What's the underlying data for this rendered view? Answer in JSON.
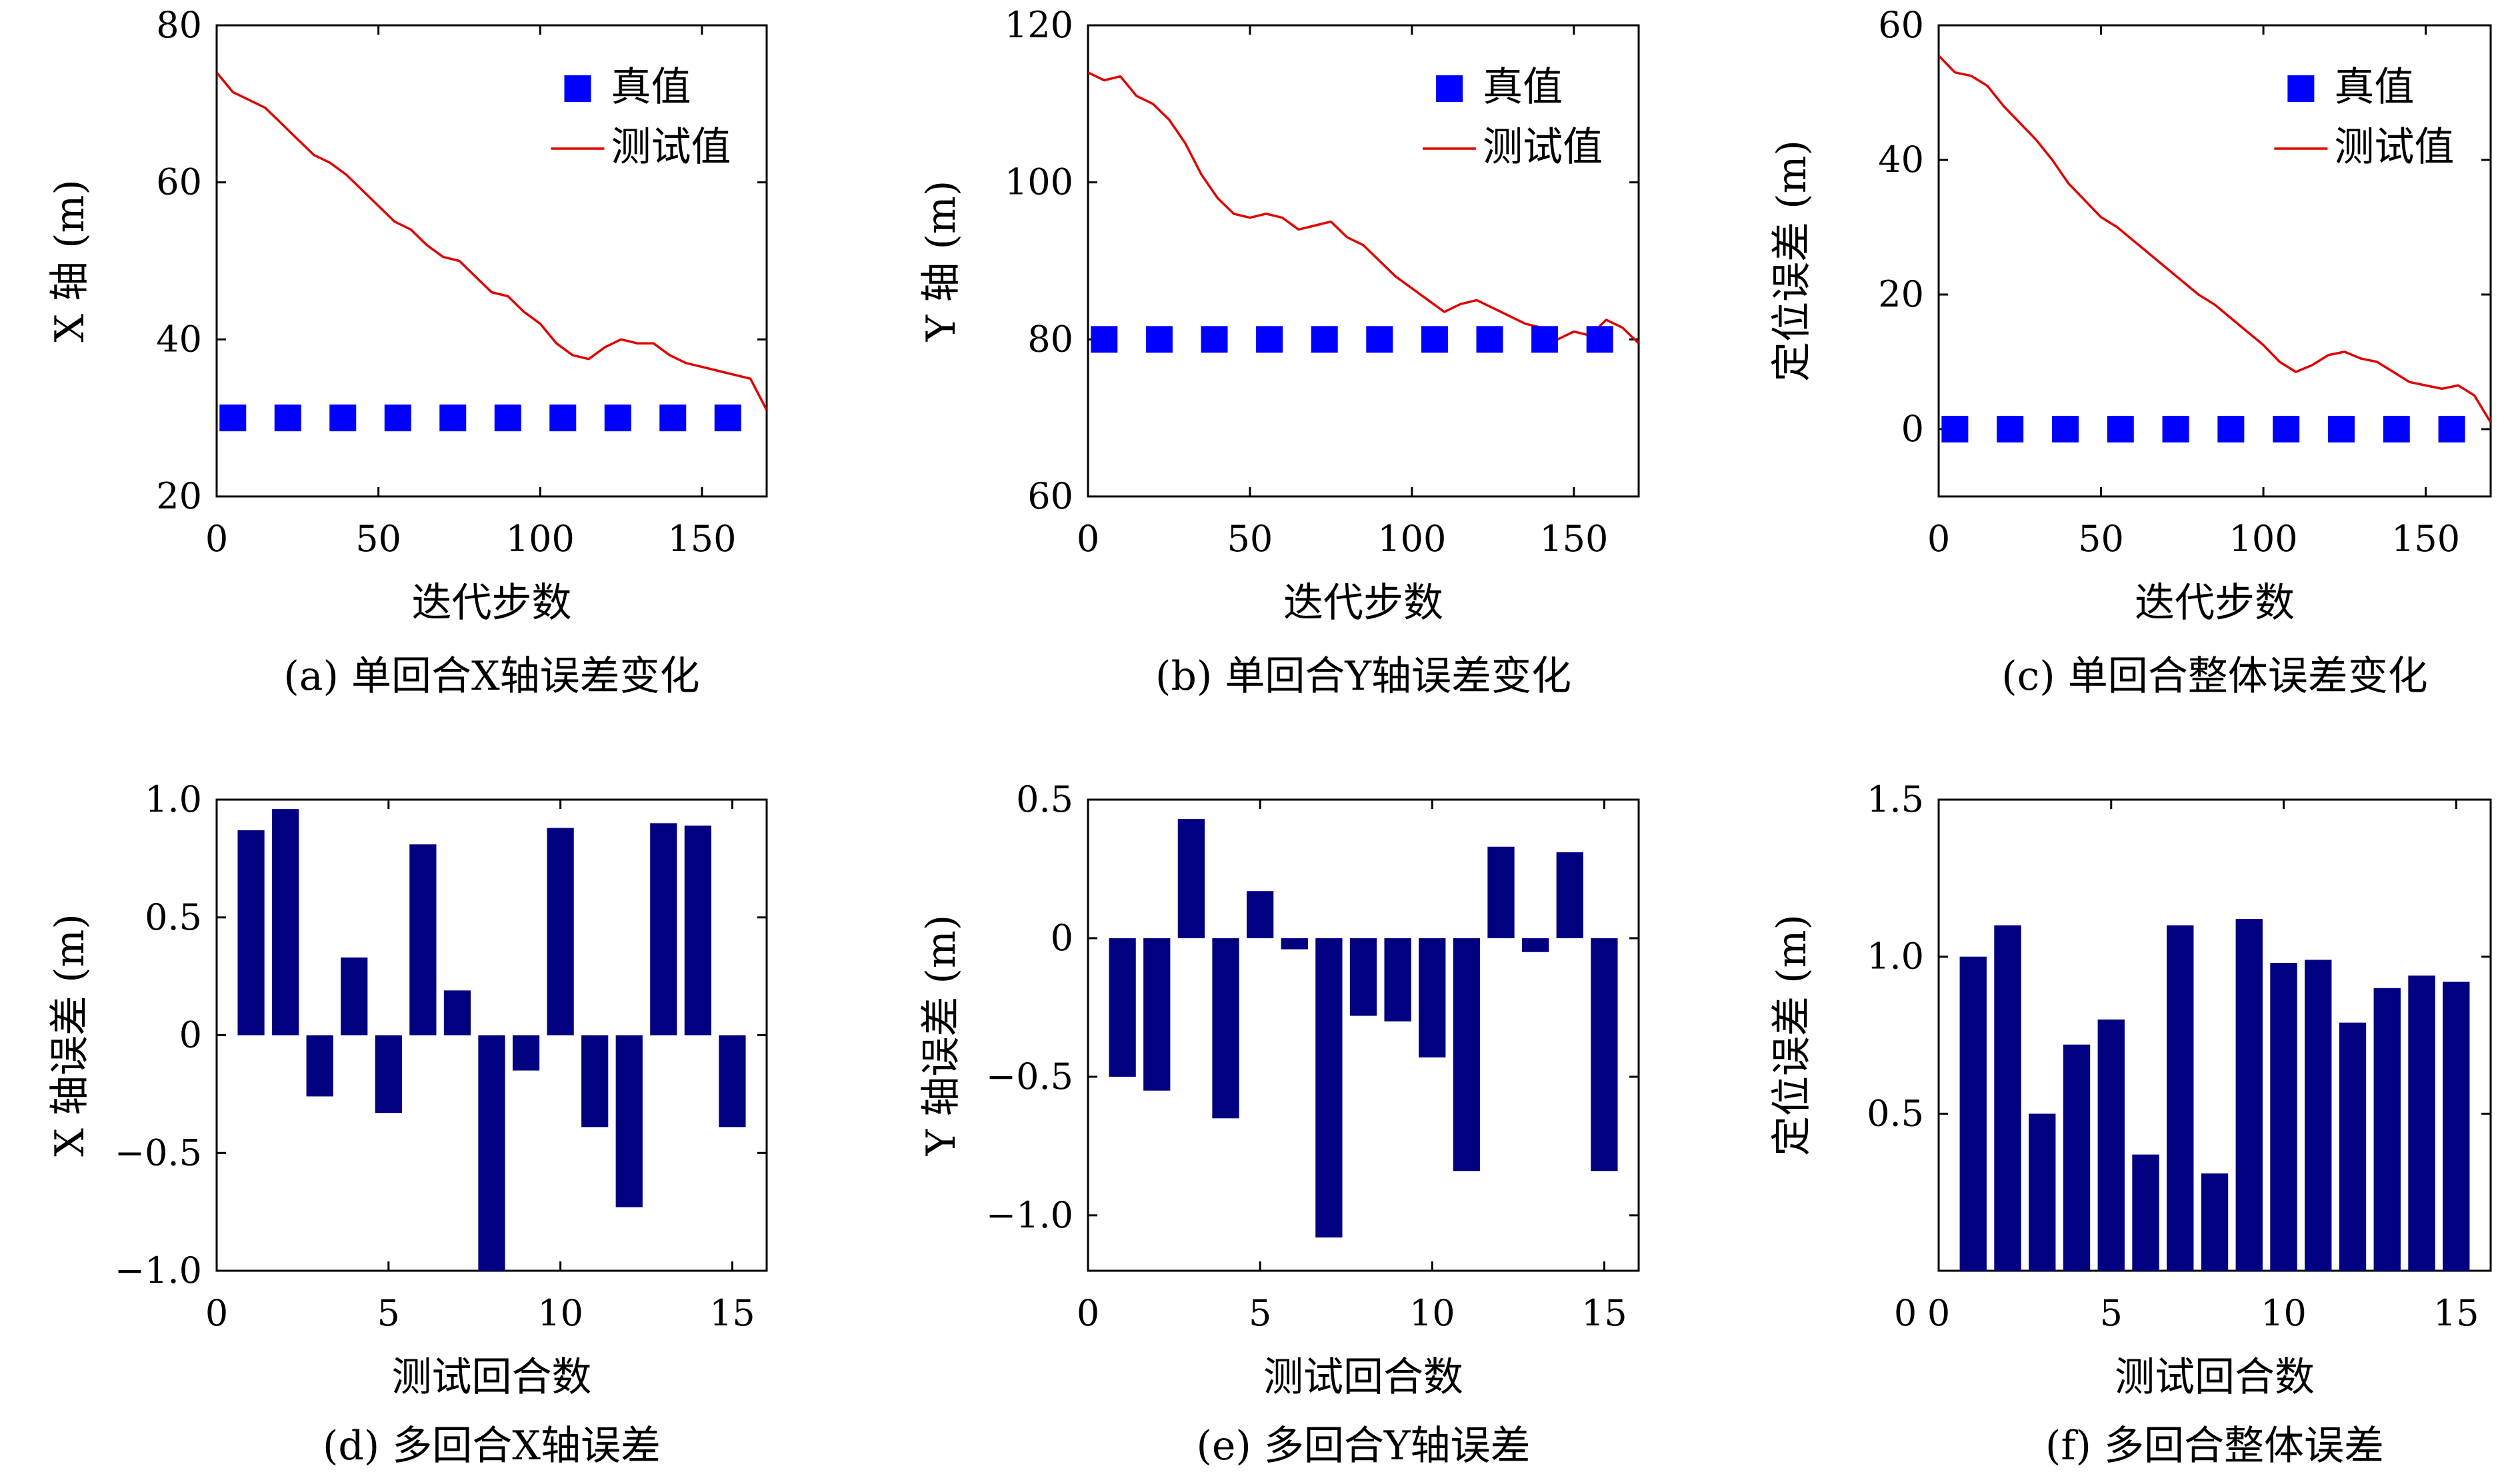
{
  "panels": [
    {
      "caption": "(a) 单回合X轴误差变化",
      "chart_data": {
        "type": "line",
        "title": "",
        "xlabel": "迭代步数",
        "ylabel": "X 轴 (m)",
        "xlim": [
          0,
          170
        ],
        "ylim": [
          20,
          80
        ],
        "xticks": [
          0,
          50,
          100,
          150
        ],
        "xtick_labels": [
          "0",
          "50",
          "100",
          "150"
        ],
        "yticks": [
          20,
          40,
          60,
          80
        ],
        "ytick_labels": [
          "20",
          "40",
          "60",
          "80"
        ],
        "legend_position": "top-right",
        "series": [
          {
            "name": "真值",
            "kind": "marker",
            "color": "#0000ff",
            "x": [
              5,
              22,
              39,
              56,
              73,
              90,
              107,
              124,
              141,
              158
            ],
            "y": [
              30,
              30,
              30,
              30,
              30,
              30,
              30,
              30,
              30,
              30
            ]
          },
          {
            "name": "测试值",
            "kind": "line",
            "color": "#e00000",
            "x": [
              0,
              5,
              10,
              15,
              20,
              25,
              30,
              35,
              40,
              45,
              50,
              55,
              60,
              65,
              70,
              75,
              80,
              85,
              90,
              95,
              100,
              105,
              110,
              115,
              120,
              125,
              130,
              135,
              140,
              145,
              150,
              155,
              160,
              165,
              170
            ],
            "y": [
              74,
              71.5,
              70.5,
              69.5,
              67.5,
              65.5,
              63.5,
              62.5,
              61,
              59,
              57,
              55,
              54,
              52,
              50.5,
              50,
              48,
              46,
              45.5,
              43.5,
              42,
              39.5,
              38,
              37.5,
              39,
              40,
              39.5,
              39.5,
              38,
              37,
              36.5,
              36,
              35.5,
              35,
              31
            ]
          }
        ]
      }
    },
    {
      "caption": "(b) 单回合Y轴误差变化",
      "chart_data": {
        "type": "line",
        "title": "",
        "xlabel": "迭代步数",
        "ylabel": "Y 轴 (m)",
        "xlim": [
          0,
          170
        ],
        "ylim": [
          60,
          120
        ],
        "xticks": [
          0,
          50,
          100,
          150
        ],
        "xtick_labels": [
          "0",
          "50",
          "100",
          "150"
        ],
        "yticks": [
          60,
          80,
          100,
          120
        ],
        "ytick_labels": [
          "60",
          "80",
          "100",
          "120"
        ],
        "legend_position": "top-right",
        "series": [
          {
            "name": "真值",
            "kind": "marker",
            "color": "#0000ff",
            "x": [
              5,
              22,
              39,
              56,
              73,
              90,
              107,
              124,
              141,
              158
            ],
            "y": [
              80,
              80,
              80,
              80,
              80,
              80,
              80,
              80,
              80,
              80
            ]
          },
          {
            "name": "测试值",
            "kind": "line",
            "color": "#e00000",
            "x": [
              0,
              5,
              10,
              15,
              20,
              25,
              30,
              35,
              40,
              45,
              50,
              55,
              60,
              65,
              70,
              75,
              80,
              85,
              90,
              95,
              100,
              105,
              110,
              115,
              120,
              125,
              130,
              135,
              140,
              145,
              150,
              155,
              160,
              165,
              170
            ],
            "y": [
              114,
              113,
              113.5,
              111,
              110,
              108,
              105,
              101,
              98,
              96,
              95.5,
              96,
              95.5,
              94,
              94.5,
              95,
              93,
              92,
              90,
              88,
              86.5,
              85,
              83.5,
              84.5,
              85,
              84,
              83,
              82,
              81.5,
              80,
              81,
              80.5,
              82.5,
              81.5,
              79.5
            ]
          }
        ]
      }
    },
    {
      "caption": "(c) 单回合整体误差变化",
      "chart_data": {
        "type": "line",
        "title": "",
        "xlabel": "迭代步数",
        "ylabel": "定位误差 (m)",
        "xlim": [
          0,
          170
        ],
        "ylim": [
          -10,
          60
        ],
        "xticks": [
          0,
          50,
          100,
          150
        ],
        "xtick_labels": [
          "0",
          "50",
          "100",
          "150"
        ],
        "yticks": [
          0,
          20,
          40,
          60
        ],
        "ytick_labels": [
          "0",
          "20",
          "40",
          "60"
        ],
        "legend_position": "top-right",
        "series": [
          {
            "name": "真值",
            "kind": "marker",
            "color": "#0000ff",
            "x": [
              5,
              22,
              39,
              56,
              73,
              90,
              107,
              124,
              141,
              158
            ],
            "y": [
              0,
              0,
              0,
              0,
              0,
              0,
              0,
              0,
              0,
              0
            ]
          },
          {
            "name": "测试值",
            "kind": "line",
            "color": "#e00000",
            "x": [
              0,
              5,
              10,
              15,
              20,
              25,
              30,
              35,
              40,
              45,
              50,
              55,
              60,
              65,
              70,
              75,
              80,
              85,
              90,
              95,
              100,
              105,
              110,
              115,
              120,
              125,
              130,
              135,
              140,
              145,
              150,
              155,
              160,
              165,
              170
            ],
            "y": [
              55.5,
              53,
              52.5,
              51,
              48,
              45.5,
              43,
              40,
              36.5,
              34,
              31.5,
              30,
              28,
              26,
              24,
              22,
              20,
              18.5,
              16.5,
              14.5,
              12.5,
              10,
              8.5,
              9.5,
              11,
              11.5,
              10.5,
              10,
              8.5,
              7,
              6.5,
              6,
              6.5,
              5,
              1
            ]
          }
        ]
      }
    },
    {
      "caption": "(d) 多回合X轴误差",
      "chart_data": {
        "type": "bar",
        "title": "",
        "xlabel": "测试回合数",
        "ylabel": "X 轴误差 (m)",
        "xlim": [
          0,
          16
        ],
        "ylim": [
          -1.0,
          1.0
        ],
        "xticks": [
          0,
          5,
          10,
          15
        ],
        "xtick_labels": [
          "0",
          "5",
          "10",
          "15"
        ],
        "yticks": [
          -1.0,
          -0.5,
          0,
          0.5,
          1.0
        ],
        "ytick_labels": [
          "−1.0",
          "−0.5",
          "0",
          "0.5",
          "1.0"
        ],
        "bar_color": "#000080",
        "categories": [
          1,
          2,
          3,
          4,
          5,
          6,
          7,
          8,
          9,
          10,
          11,
          12,
          13,
          14,
          15
        ],
        "values": [
          0.87,
          0.96,
          -0.26,
          0.33,
          -0.33,
          0.81,
          0.19,
          -1.0,
          -0.15,
          0.88,
          -0.39,
          -0.73,
          0.9,
          0.89,
          -0.39
        ]
      }
    },
    {
      "caption": "(e) 多回合Y轴误差",
      "chart_data": {
        "type": "bar",
        "title": "",
        "xlabel": "测试回合数",
        "ylabel": "Y 轴误差 (m)",
        "xlim": [
          0,
          16
        ],
        "ylim": [
          -1.2,
          0.5
        ],
        "xticks": [
          0,
          5,
          10,
          15
        ],
        "xtick_labels": [
          "0",
          "5",
          "10",
          "15"
        ],
        "yticks": [
          -1.0,
          -0.5,
          0,
          0.5
        ],
        "ytick_labels": [
          "−1.0",
          "−0.5",
          "0",
          "0.5"
        ],
        "bar_color": "#000080",
        "categories": [
          1,
          2,
          3,
          4,
          5,
          6,
          7,
          8,
          9,
          10,
          11,
          12,
          13,
          14,
          15
        ],
        "values": [
          -0.5,
          -0.55,
          0.43,
          -0.65,
          0.17,
          -0.04,
          -1.08,
          -0.28,
          -0.3,
          -0.43,
          -0.84,
          0.33,
          -0.05,
          0.31,
          -0.84
        ]
      }
    },
    {
      "caption": "(f) 多回合整体误差",
      "chart_data": {
        "type": "bar",
        "title": "",
        "xlabel": "测试回合数",
        "ylabel": "定位误差 (m)",
        "xlim": [
          0,
          16
        ],
        "ylim": [
          0,
          1.5
        ],
        "xticks": [
          0,
          5,
          10,
          15
        ],
        "xtick_labels": [
          "0",
          "5",
          "10",
          "15"
        ],
        "yticks": [
          0.5,
          1.0,
          1.5
        ],
        "ytick_labels": [
          "0.5",
          "1.0",
          "1.5"
        ],
        "extra_label": "0",
        "bar_color": "#000080",
        "categories": [
          1,
          2,
          3,
          4,
          5,
          6,
          7,
          8,
          9,
          10,
          11,
          12,
          13,
          14,
          15
        ],
        "values": [
          1.0,
          1.1,
          0.5,
          0.72,
          0.8,
          0.37,
          1.1,
          0.31,
          1.12,
          0.98,
          0.99,
          0.79,
          0.9,
          0.94,
          0.92
        ]
      }
    }
  ]
}
